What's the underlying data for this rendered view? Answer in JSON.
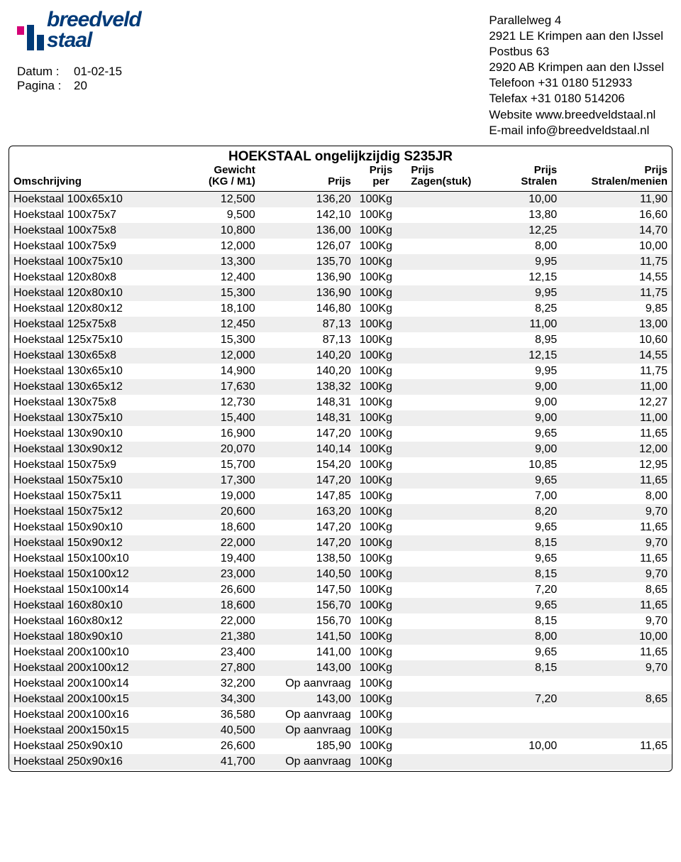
{
  "header": {
    "logo_top": "breedveld",
    "logo_bottom": "staal",
    "date_label": "Datum :",
    "date_value": "01-02-15",
    "page_label": "Pagina :",
    "page_value": "20",
    "address": [
      "Parallelweg 4",
      "2921 LE  Krimpen aan den IJssel",
      "Postbus 63",
      "2920 AB  Krimpen aan den IJssel",
      "Telefoon +31 0180 512933",
      "Telefax   +31 0180 514206",
      "Website www.breedveldstaal.nl",
      "E-mail info@breedveldstaal.nl"
    ]
  },
  "table": {
    "title": "HOEKSTAAL ongelijkzijdig S235JR",
    "columns": {
      "desc": "Omschrijving",
      "weight_l1": "Gewicht",
      "weight_l2": "(KG / M1)",
      "prijs": "Prijs",
      "prijs_per_l1": "Prijs",
      "prijs_per_l2": "per",
      "zagen_l1": "Prijs",
      "zagen_l2": "Zagen(stuk)",
      "stralen_l1": "Prijs",
      "stralen_l2": "Stralen",
      "menien_l1": "Prijs",
      "menien_l2": "Stralen/menien"
    },
    "row_stripe_odd": "#eeeeee",
    "row_stripe_even": "#ffffff",
    "rows": [
      {
        "d": "Hoekstaal 100x65x10",
        "w": "12,500",
        "p": "136,20",
        "per": "100Kg",
        "z": "",
        "s": "10,00",
        "m": "11,90"
      },
      {
        "d": "Hoekstaal 100x75x7",
        "w": "9,500",
        "p": "142,10",
        "per": "100Kg",
        "z": "",
        "s": "13,80",
        "m": "16,60"
      },
      {
        "d": "Hoekstaal 100x75x8",
        "w": "10,800",
        "p": "136,00",
        "per": "100Kg",
        "z": "",
        "s": "12,25",
        "m": "14,70"
      },
      {
        "d": "Hoekstaal 100x75x9",
        "w": "12,000",
        "p": "126,07",
        "per": "100Kg",
        "z": "",
        "s": "8,00",
        "m": "10,00"
      },
      {
        "d": "Hoekstaal 100x75x10",
        "w": "13,300",
        "p": "135,70",
        "per": "100Kg",
        "z": "",
        "s": "9,95",
        "m": "11,75"
      },
      {
        "d": "Hoekstaal 120x80x8",
        "w": "12,400",
        "p": "136,90",
        "per": "100Kg",
        "z": "",
        "s": "12,15",
        "m": "14,55"
      },
      {
        "d": "Hoekstaal 120x80x10",
        "w": "15,300",
        "p": "136,90",
        "per": "100Kg",
        "z": "",
        "s": "9,95",
        "m": "11,75"
      },
      {
        "d": "Hoekstaal 120x80x12",
        "w": "18,100",
        "p": "146,80",
        "per": "100Kg",
        "z": "",
        "s": "8,25",
        "m": "9,85"
      },
      {
        "d": "Hoekstaal 125x75x8",
        "w": "12,450",
        "p": "87,13",
        "per": "100Kg",
        "z": "",
        "s": "11,00",
        "m": "13,00"
      },
      {
        "d": "Hoekstaal 125x75x10",
        "w": "15,300",
        "p": "87,13",
        "per": "100Kg",
        "z": "",
        "s": "8,95",
        "m": "10,60"
      },
      {
        "d": "Hoekstaal 130x65x8",
        "w": "12,000",
        "p": "140,20",
        "per": "100Kg",
        "z": "",
        "s": "12,15",
        "m": "14,55"
      },
      {
        "d": "Hoekstaal 130x65x10",
        "w": "14,900",
        "p": "140,20",
        "per": "100Kg",
        "z": "",
        "s": "9,95",
        "m": "11,75"
      },
      {
        "d": "Hoekstaal 130x65x12",
        "w": "17,630",
        "p": "138,32",
        "per": "100Kg",
        "z": "",
        "s": "9,00",
        "m": "11,00"
      },
      {
        "d": "Hoekstaal 130x75x8",
        "w": "12,730",
        "p": "148,31",
        "per": "100Kg",
        "z": "",
        "s": "9,00",
        "m": "12,27"
      },
      {
        "d": "Hoekstaal 130x75x10",
        "w": "15,400",
        "p": "148,31",
        "per": "100Kg",
        "z": "",
        "s": "9,00",
        "m": "11,00"
      },
      {
        "d": "Hoekstaal 130x90x10",
        "w": "16,900",
        "p": "147,20",
        "per": "100Kg",
        "z": "",
        "s": "9,65",
        "m": "11,65"
      },
      {
        "d": "Hoekstaal 130x90x12",
        "w": "20,070",
        "p": "140,14",
        "per": "100Kg",
        "z": "",
        "s": "9,00",
        "m": "12,00"
      },
      {
        "d": "Hoekstaal 150x75x9",
        "w": "15,700",
        "p": "154,20",
        "per": "100Kg",
        "z": "",
        "s": "10,85",
        "m": "12,95"
      },
      {
        "d": "Hoekstaal 150x75x10",
        "w": "17,300",
        "p": "147,20",
        "per": "100Kg",
        "z": "",
        "s": "9,65",
        "m": "11,65"
      },
      {
        "d": "Hoekstaal 150x75x11",
        "w": "19,000",
        "p": "147,85",
        "per": "100Kg",
        "z": "",
        "s": "7,00",
        "m": "8,00"
      },
      {
        "d": "Hoekstaal 150x75x12",
        "w": "20,600",
        "p": "163,20",
        "per": "100Kg",
        "z": "",
        "s": "8,20",
        "m": "9,70"
      },
      {
        "d": "Hoekstaal 150x90x10",
        "w": "18,600",
        "p": "147,20",
        "per": "100Kg",
        "z": "",
        "s": "9,65",
        "m": "11,65"
      },
      {
        "d": "Hoekstaal 150x90x12",
        "w": "22,000",
        "p": "147,20",
        "per": "100Kg",
        "z": "",
        "s": "8,15",
        "m": "9,70"
      },
      {
        "d": "Hoekstaal 150x100x10",
        "w": "19,400",
        "p": "138,50",
        "per": "100Kg",
        "z": "",
        "s": "9,65",
        "m": "11,65"
      },
      {
        "d": "Hoekstaal 150x100x12",
        "w": "23,000",
        "p": "140,50",
        "per": "100Kg",
        "z": "",
        "s": "8,15",
        "m": "9,70"
      },
      {
        "d": "Hoekstaal 150x100x14",
        "w": "26,600",
        "p": "147,50",
        "per": "100Kg",
        "z": "",
        "s": "7,20",
        "m": "8,65"
      },
      {
        "d": "Hoekstaal 160x80x10",
        "w": "18,600",
        "p": "156,70",
        "per": "100Kg",
        "z": "",
        "s": "9,65",
        "m": "11,65"
      },
      {
        "d": "Hoekstaal 160x80x12",
        "w": "22,000",
        "p": "156,70",
        "per": "100Kg",
        "z": "",
        "s": "8,15",
        "m": "9,70"
      },
      {
        "d": "Hoekstaal 180x90x10",
        "w": "21,380",
        "p": "141,50",
        "per": "100Kg",
        "z": "",
        "s": "8,00",
        "m": "10,00"
      },
      {
        "d": "Hoekstaal 200x100x10",
        "w": "23,400",
        "p": "141,00",
        "per": "100Kg",
        "z": "",
        "s": "9,65",
        "m": "11,65"
      },
      {
        "d": "Hoekstaal 200x100x12",
        "w": "27,800",
        "p": "143,00",
        "per": "100Kg",
        "z": "",
        "s": "8,15",
        "m": "9,70"
      },
      {
        "d": "Hoekstaal 200x100x14",
        "w": "32,200",
        "p": "Op aanvraag",
        "per": "100Kg",
        "z": "",
        "s": "",
        "m": ""
      },
      {
        "d": "Hoekstaal 200x100x15",
        "w": "34,300",
        "p": "143,00",
        "per": "100Kg",
        "z": "",
        "s": "7,20",
        "m": "8,65"
      },
      {
        "d": "Hoekstaal 200x100x16",
        "w": "36,580",
        "p": "Op aanvraag",
        "per": "100Kg",
        "z": "",
        "s": "",
        "m": ""
      },
      {
        "d": "Hoekstaal 200x150x15",
        "w": "40,500",
        "p": "Op aanvraag",
        "per": "100Kg",
        "z": "",
        "s": "",
        "m": ""
      },
      {
        "d": "Hoekstaal 250x90x10",
        "w": "26,600",
        "p": "185,90",
        "per": "100Kg",
        "z": "",
        "s": "10,00",
        "m": "11,65"
      },
      {
        "d": "Hoekstaal 250x90x16",
        "w": "41,700",
        "p": "Op aanvraag",
        "per": "100Kg",
        "z": "",
        "s": "",
        "m": ""
      }
    ]
  }
}
